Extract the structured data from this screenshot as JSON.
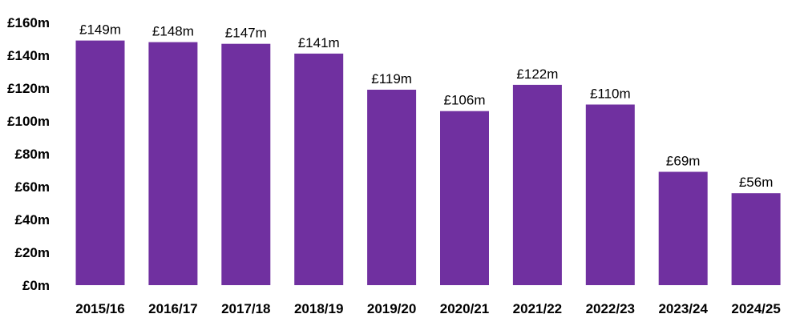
{
  "chart_data": {
    "type": "bar",
    "title": "",
    "xlabel": "",
    "ylabel": "",
    "categories": [
      "2015/16",
      "2016/17",
      "2017/18",
      "2018/19",
      "2019/20",
      "2020/21",
      "2021/22",
      "2022/23",
      "2023/24",
      "2024/25"
    ],
    "values": [
      149,
      148,
      147,
      141,
      119,
      106,
      122,
      110,
      69,
      56
    ],
    "data_labels": [
      "£149m",
      "£148m",
      "£147m",
      "£141m",
      "£119m",
      "£106m",
      "£122m",
      "£110m",
      "£69m",
      "£56m"
    ],
    "ylim": [
      0,
      160
    ],
    "yticks": [
      0,
      20,
      40,
      60,
      80,
      100,
      120,
      140,
      160
    ],
    "ytick_labels": [
      "£0m",
      "£20m",
      "£40m",
      "£60m",
      "£80m",
      "£100m",
      "£120m",
      "£140m",
      "£160m"
    ],
    "grid": false,
    "legend": "none",
    "bar_color": "#7030a0"
  }
}
